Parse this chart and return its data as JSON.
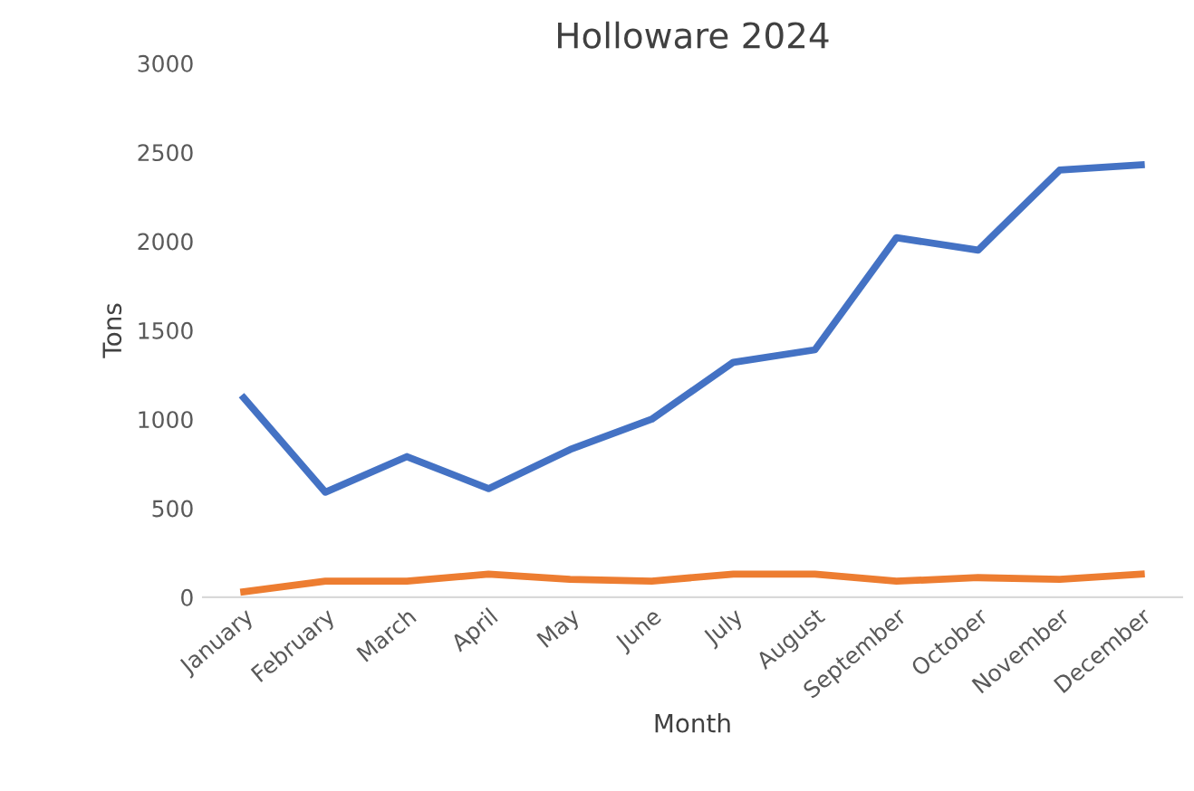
{
  "chart_data": {
    "type": "line",
    "title": "Holloware 2024",
    "xlabel": "Month",
    "ylabel": "Tons",
    "categories": [
      "January",
      "February",
      "March",
      "April",
      "May",
      "June",
      "July",
      "August",
      "September",
      "October",
      "November",
      "December"
    ],
    "series": [
      {
        "color": "#4472c4",
        "values": [
          1120,
          590,
          790,
          610,
          830,
          1000,
          1320,
          1390,
          2020,
          1950,
          2400,
          2430
        ]
      },
      {
        "color": "#ed7d31",
        "values": [
          30,
          90,
          90,
          130,
          100,
          90,
          130,
          130,
          90,
          110,
          100,
          130
        ]
      }
    ],
    "ylim": [
      0,
      3000
    ],
    "yticks": [
      0,
      500,
      1000,
      1500,
      2000,
      2500,
      3000
    ],
    "grid": false,
    "marker": "none",
    "line_style": "solid"
  }
}
